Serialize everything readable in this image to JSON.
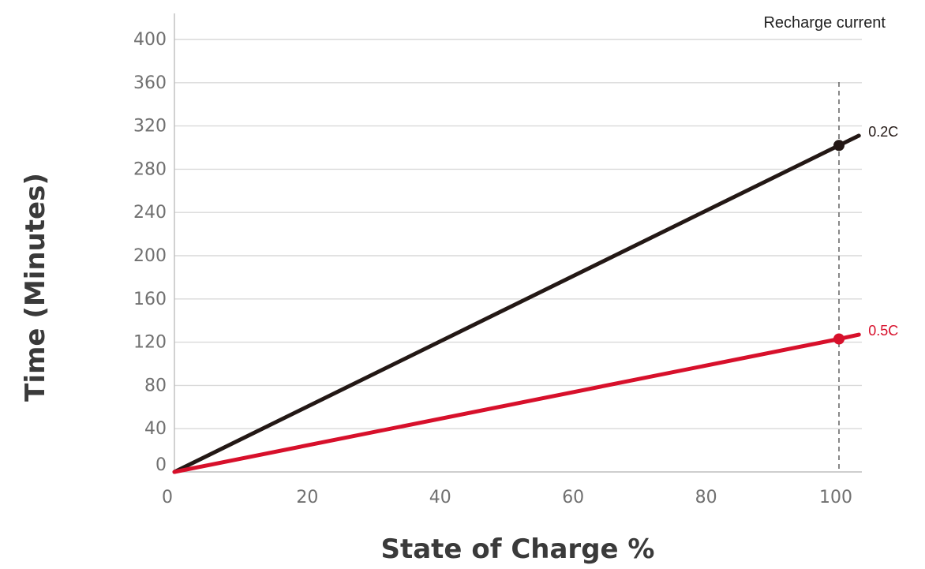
{
  "chart_data": {
    "type": "line",
    "xlabel": "State of Charge %",
    "ylabel": "Time (Minutes)",
    "xlim": [
      0,
      103
    ],
    "ylim": [
      0,
      400
    ],
    "x_ticks": [
      0,
      20,
      40,
      60,
      80,
      100
    ],
    "y_ticks": [
      0,
      40,
      80,
      120,
      160,
      200,
      240,
      280,
      320,
      360,
      400
    ],
    "grid": true,
    "legend_title": "Recharge current",
    "legend_placement": "right, at line ends",
    "reference_line": {
      "x": 100,
      "style": "dashed"
    },
    "series": [
      {
        "name": "0.2C",
        "color": "#231815",
        "x": [
          0,
          100,
          103
        ],
        "y": [
          0,
          302,
          311
        ],
        "marker_at_x": 100
      },
      {
        "name": "0.5C",
        "color": "#d7102b",
        "x": [
          0,
          100,
          103
        ],
        "y": [
          0,
          123,
          127
        ],
        "marker_at_x": 100
      }
    ]
  }
}
